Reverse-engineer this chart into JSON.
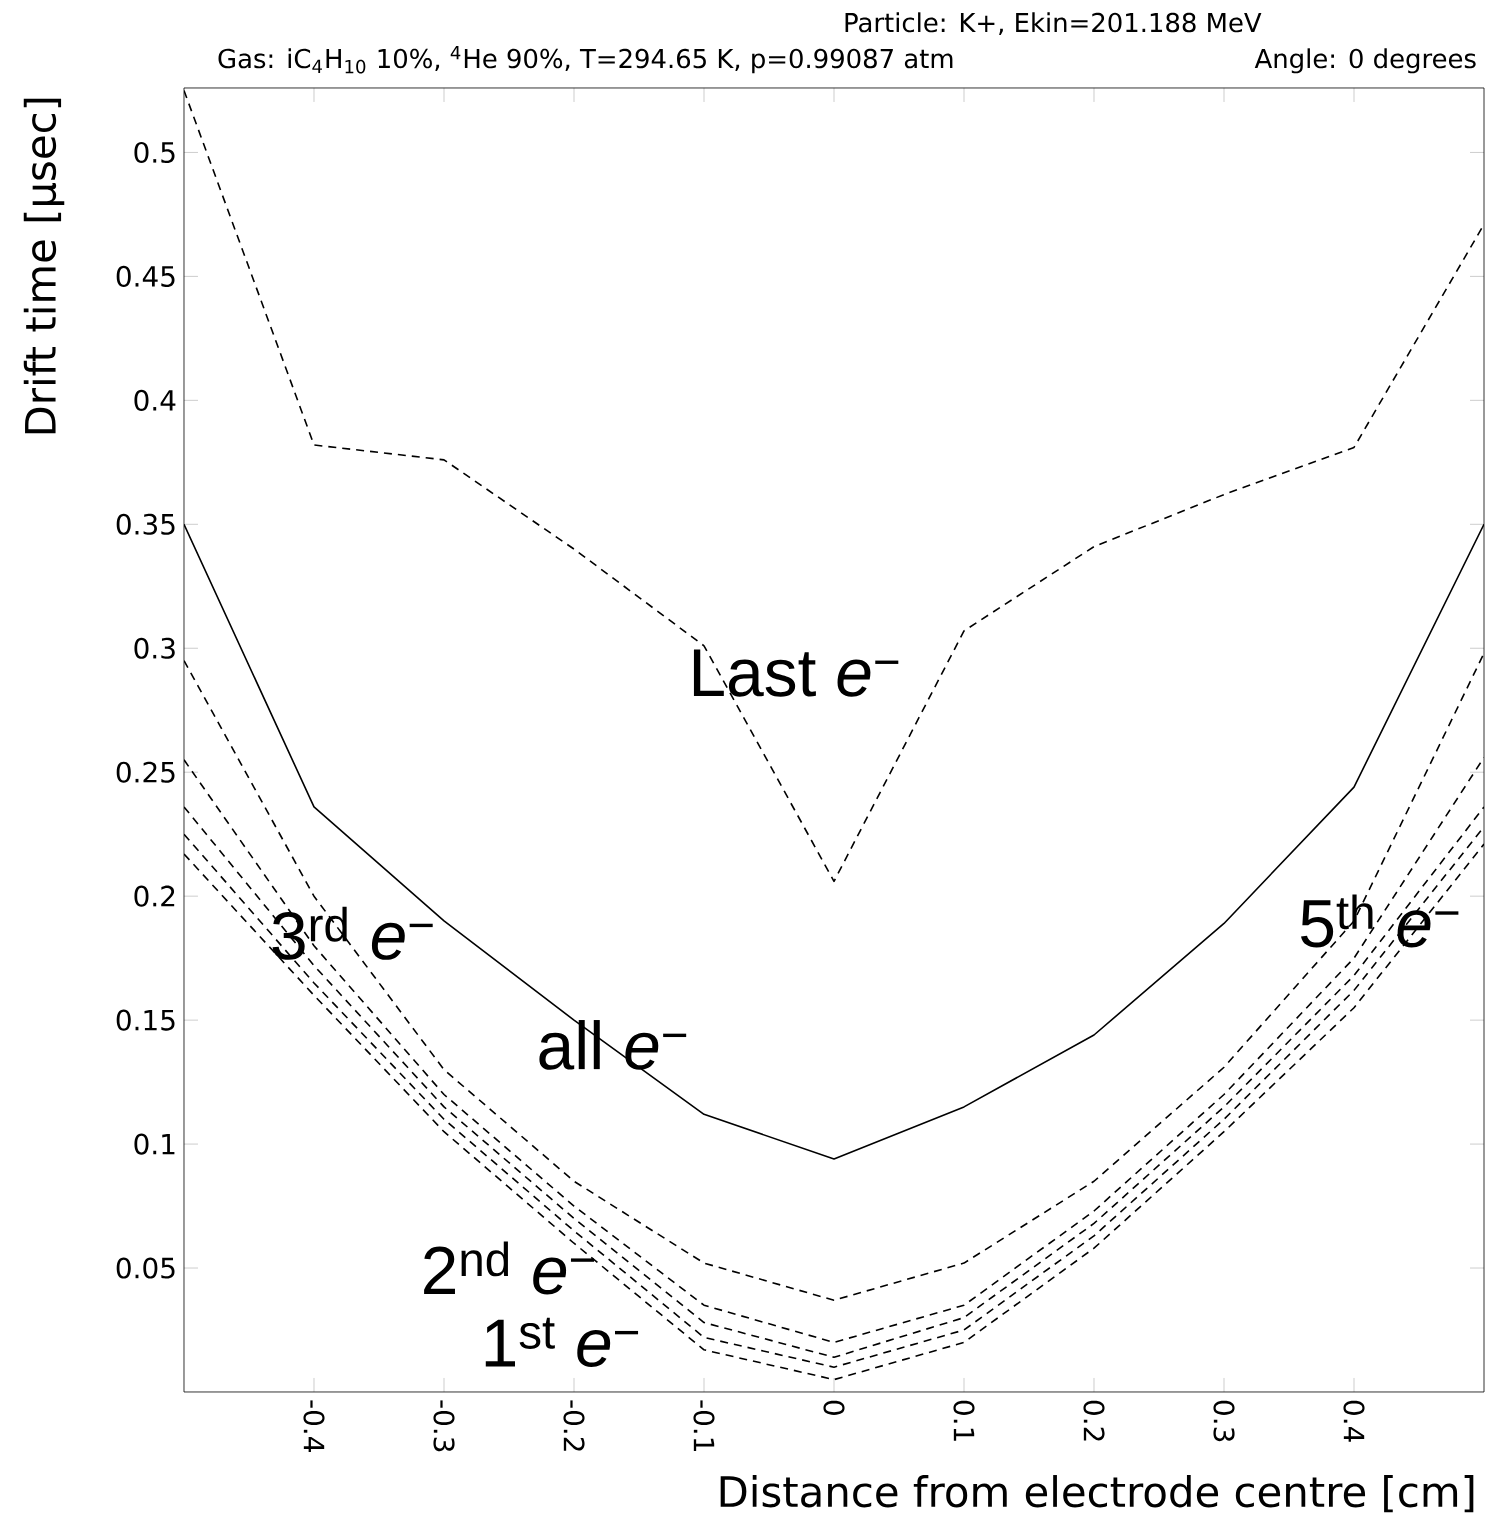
{
  "chart_data": {
    "type": "line",
    "title": "Gas: iC$_{4}$H$_{10}$ 10%, $^{4}$He 90%, T=294.65 K, p=0.99087 atm",
    "subtitle": "Particle: K+, Ekin=201.188 MeV",
    "xlabel": "Distance from electrode centre [cm]",
    "ylabel": "Drift time [μsec]",
    "x": [
      -0.5,
      -0.4,
      -0.3,
      -0.2,
      -0.1,
      0,
      0.1,
      0.2,
      0.3,
      0.4,
      0.5
    ],
    "xlim": [
      -0.5,
      0.5
    ],
    "ylim": [
      0,
      0.526
    ],
    "xticks": [
      -0.4,
      -0.3,
      -0.2,
      -0.1,
      0,
      0.1,
      0.2,
      0.3,
      0.4
    ],
    "yticks": [
      0.05,
      0.1,
      0.15,
      0.2,
      0.25,
      0.3,
      0.35,
      0.4,
      0.45,
      0.5
    ],
    "grid": false,
    "legend": false,
    "marker": "none",
    "series": [
      {
        "name": "Last *e*$^{−}$",
        "color": "#000000",
        "line_style": "dashed",
        "values": [
          0.525,
          0.382,
          0.376,
          0.34,
          0.301,
          0.206,
          0.307,
          0.341,
          0.362,
          0.381,
          0.471
        ]
      },
      {
        "name": "all *e*$^{−}$",
        "color": "#000000",
        "line_style": "solid",
        "values": [
          0.35,
          0.236,
          0.19,
          0.15,
          0.112,
          0.094,
          0.115,
          0.144,
          0.189,
          0.244,
          0.35
        ]
      },
      {
        "name": "5$^{th}$ *e*$^{−}$",
        "color": "#000000",
        "line_style": "dashed",
        "values": [
          0.295,
          0.2,
          0.13,
          0.085,
          0.052,
          0.037,
          0.052,
          0.085,
          0.131,
          0.19,
          0.298
        ]
      },
      {
        "color": "#000000",
        "line_style": "dashed",
        "values": [
          0.255,
          0.18,
          0.12,
          0.075,
          0.035,
          0.02,
          0.035,
          0.073,
          0.12,
          0.175,
          0.256
        ]
      },
      {
        "name": "3$^{rd}$ *e*$^{−}$",
        "color": "#000000",
        "line_style": "dashed",
        "values": [
          0.236,
          0.172,
          0.115,
          0.07,
          0.028,
          0.014,
          0.03,
          0.068,
          0.115,
          0.168,
          0.236
        ]
      },
      {
        "name": "2$^{nd}$ *e*$^{−}$",
        "color": "#000000",
        "line_style": "dashed",
        "values": [
          0.225,
          0.165,
          0.11,
          0.065,
          0.022,
          0.01,
          0.025,
          0.063,
          0.11,
          0.162,
          0.228
        ]
      },
      {
        "name": "1$^{st}$ *e*$^{−}$",
        "color": "#000000",
        "line_style": "dashed",
        "values": [
          0.217,
          0.16,
          0.105,
          0.06,
          0.017,
          0.005,
          0.02,
          0.058,
          0.105,
          0.155,
          0.221
        ]
      }
    ],
    "annotations": [
      "Angle: 0 degrees"
    ]
  }
}
